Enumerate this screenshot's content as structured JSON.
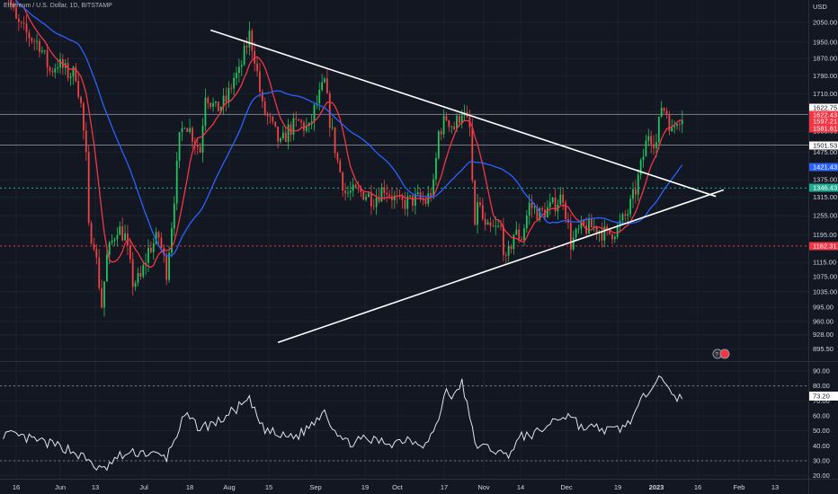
{
  "legend": {
    "symbol": "Ethereum / U.S. Dollar, 1D, BITSTAMP"
  },
  "chart_data": [
    {
      "type": "candlestick",
      "currency": "USD",
      "ylim": [
        880,
        2130
      ],
      "y_scale": "log",
      "y_ticks": [
        "2050.00",
        "1950.00",
        "1870.00",
        "1790.00",
        "1710.00",
        "1635.00",
        "1555.00",
        "1475.00",
        "1375.00",
        "1315.00",
        "1255.00",
        "1195.00",
        "1115.00",
        "1075.00",
        "1035.00",
        "995.00",
        "960.00",
        "928.00",
        "895.50"
      ],
      "x_ticks": [
        "16",
        "Jun",
        "13",
        "Jul",
        "18",
        "Aug",
        "15",
        "Sep",
        "19",
        "Oct",
        "17",
        "Nov",
        "14",
        "Dec",
        "19",
        "2023",
        "16",
        "Feb",
        "13"
      ],
      "last_close": 1622.75,
      "price_badges": [
        {
          "label": "1622.75",
          "kind": "last"
        },
        {
          "label": "1622.43",
          "kind": "ma-red"
        },
        {
          "label": "1597.21",
          "kind": "ma-red"
        },
        {
          "label": "1581.61",
          "kind": "ma-red"
        },
        {
          "label": "1501.53",
          "kind": "level"
        },
        {
          "label": "1421.43",
          "kind": "ma-blue"
        },
        {
          "label": "1346.43",
          "kind": "support-green"
        },
        {
          "label": "1162.31",
          "kind": "support-red"
        }
      ],
      "horizontal_levels": [
        {
          "price": 1622.75,
          "style": "solid",
          "color": "#787b86"
        },
        {
          "price": 1501.53,
          "style": "solid",
          "color": "#787b86"
        },
        {
          "price": 1346.43,
          "style": "dotted",
          "color": "#22ab94"
        },
        {
          "price": 1162.31,
          "style": "dotted",
          "color": "#f23645"
        }
      ],
      "trendlines": [
        {
          "from": [
            "2022-07-30",
            2010
          ],
          "to": [
            "2023-02-10",
            1318
          ]
        },
        {
          "from": [
            "2022-08-25",
            910
          ],
          "to": [
            "2023-02-13",
            1340
          ]
        }
      ],
      "moving_averages": [
        {
          "color": "#f23645"
        },
        {
          "color": "#2962ff"
        }
      ],
      "anchors": [
        {
          "date": "2022-05-11",
          "close": 2300
        },
        {
          "date": "2022-05-16",
          "close": 2050
        },
        {
          "date": "2022-05-20",
          "close": 1990
        },
        {
          "date": "2022-05-25",
          "close": 1940
        },
        {
          "date": "2022-05-29",
          "close": 1810
        },
        {
          "date": "2022-06-01",
          "close": 1850
        },
        {
          "date": "2022-06-05",
          "close": 1800
        },
        {
          "date": "2022-06-08",
          "close": 1800
        },
        {
          "date": "2022-06-10",
          "close": 1660
        },
        {
          "date": "2022-06-12",
          "close": 1450
        },
        {
          "date": "2022-06-13",
          "close": 1210
        },
        {
          "date": "2022-06-15",
          "close": 1180
        },
        {
          "date": "2022-06-18",
          "close": 1000
        },
        {
          "date": "2022-06-20",
          "close": 1130
        },
        {
          "date": "2022-06-24",
          "close": 1220
        },
        {
          "date": "2022-06-27",
          "close": 1190
        },
        {
          "date": "2022-06-30",
          "close": 1060
        },
        {
          "date": "2022-07-03",
          "close": 1070
        },
        {
          "date": "2022-07-06",
          "close": 1150
        },
        {
          "date": "2022-07-10",
          "close": 1190
        },
        {
          "date": "2022-07-13",
          "close": 1090
        },
        {
          "date": "2022-07-15",
          "close": 1230
        },
        {
          "date": "2022-07-18",
          "close": 1520
        },
        {
          "date": "2022-07-20",
          "close": 1600
        },
        {
          "date": "2022-07-22",
          "close": 1560
        },
        {
          "date": "2022-07-26",
          "close": 1480
        },
        {
          "date": "2022-07-28",
          "close": 1720
        },
        {
          "date": "2022-08-01",
          "close": 1640
        },
        {
          "date": "2022-08-05",
          "close": 1680
        },
        {
          "date": "2022-08-08",
          "close": 1780
        },
        {
          "date": "2022-08-10",
          "close": 1800
        },
        {
          "date": "2022-08-14",
          "close": 1985
        },
        {
          "date": "2022-08-16",
          "close": 1880
        },
        {
          "date": "2022-08-19",
          "close": 1650
        },
        {
          "date": "2022-08-22",
          "close": 1590
        },
        {
          "date": "2022-08-26",
          "close": 1500
        },
        {
          "date": "2022-08-29",
          "close": 1560
        },
        {
          "date": "2022-09-02",
          "close": 1590
        },
        {
          "date": "2022-09-06",
          "close": 1560
        },
        {
          "date": "2022-09-08",
          "close": 1640
        },
        {
          "date": "2022-09-12",
          "close": 1760
        },
        {
          "date": "2022-09-14",
          "close": 1600
        },
        {
          "date": "2022-09-17",
          "close": 1440
        },
        {
          "date": "2022-09-20",
          "close": 1330
        },
        {
          "date": "2022-09-23",
          "close": 1330
        },
        {
          "date": "2022-09-27",
          "close": 1330
        },
        {
          "date": "2022-10-01",
          "close": 1310
        },
        {
          "date": "2022-10-05",
          "close": 1350
        },
        {
          "date": "2022-10-08",
          "close": 1320
        },
        {
          "date": "2022-10-11",
          "close": 1290
        },
        {
          "date": "2022-10-14",
          "close": 1300
        },
        {
          "date": "2022-10-18",
          "close": 1310
        },
        {
          "date": "2022-10-21",
          "close": 1300
        },
        {
          "date": "2022-10-24",
          "close": 1350
        },
        {
          "date": "2022-10-26",
          "close": 1550
        },
        {
          "date": "2022-10-29",
          "close": 1610
        },
        {
          "date": "2022-11-01",
          "close": 1570
        },
        {
          "date": "2022-11-04",
          "close": 1640
        },
        {
          "date": "2022-11-07",
          "close": 1560
        },
        {
          "date": "2022-11-09",
          "close": 1200
        },
        {
          "date": "2022-11-10",
          "close": 1310
        },
        {
          "date": "2022-11-13",
          "close": 1210
        },
        {
          "date": "2022-11-16",
          "close": 1210
        },
        {
          "date": "2022-11-19",
          "close": 1215
        },
        {
          "date": "2022-11-21",
          "close": 1110
        },
        {
          "date": "2022-11-24",
          "close": 1200
        },
        {
          "date": "2022-11-27",
          "close": 1190
        },
        {
          "date": "2022-11-30",
          "close": 1290
        },
        {
          "date": "2022-12-04",
          "close": 1260
        },
        {
          "date": "2022-12-08",
          "close": 1280
        },
        {
          "date": "2022-12-13",
          "close": 1320
        },
        {
          "date": "2022-12-16",
          "close": 1170
        },
        {
          "date": "2022-12-20",
          "close": 1215
        },
        {
          "date": "2022-12-25",
          "close": 1220
        },
        {
          "date": "2022-12-30",
          "close": 1195
        },
        {
          "date": "2023-01-03",
          "close": 1215
        },
        {
          "date": "2023-01-07",
          "close": 1265
        },
        {
          "date": "2023-01-10",
          "close": 1340
        },
        {
          "date": "2023-01-12",
          "close": 1420
        },
        {
          "date": "2023-01-15",
          "close": 1550
        },
        {
          "date": "2023-01-18",
          "close": 1510
        },
        {
          "date": "2023-01-20",
          "close": 1660
        },
        {
          "date": "2023-01-22",
          "close": 1630
        },
        {
          "date": "2023-01-24",
          "close": 1550
        },
        {
          "date": "2023-01-26",
          "close": 1610
        },
        {
          "date": "2023-01-28",
          "close": 1622.75
        }
      ]
    },
    {
      "type": "line",
      "name": "RSI",
      "ylim": [
        18,
        96
      ],
      "y_ticks": [
        "90.00",
        "80.00",
        "70.00",
        "60.00",
        "50.00",
        "40.00",
        "30.00",
        "20.00"
      ],
      "reference_levels": [
        80,
        30
      ],
      "last_value_label": "73.20",
      "x": [
        "2022-05-11",
        "2022-05-25",
        "2022-06-05",
        "2022-06-13",
        "2022-06-18",
        "2022-06-25",
        "2022-07-03",
        "2022-07-13",
        "2022-07-20",
        "2022-07-26",
        "2022-08-02",
        "2022-08-10",
        "2022-08-14",
        "2022-08-19",
        "2022-08-26",
        "2022-09-02",
        "2022-09-08",
        "2022-09-12",
        "2022-09-14",
        "2022-09-20",
        "2022-09-28",
        "2022-10-08",
        "2022-10-14",
        "2022-10-21",
        "2022-10-25",
        "2022-10-29",
        "2022-11-01",
        "2022-11-04",
        "2022-11-09",
        "2022-11-12",
        "2022-11-16",
        "2022-11-21",
        "2022-11-27",
        "2022-12-04",
        "2022-12-10",
        "2022-12-16",
        "2022-12-20",
        "2022-12-25",
        "2023-01-01",
        "2023-01-06",
        "2023-01-10",
        "2023-01-15",
        "2023-01-18",
        "2023-01-20",
        "2023-01-22",
        "2023-01-25",
        "2023-01-28"
      ],
      "values": [
        48,
        43,
        38,
        30,
        23,
        33,
        36,
        32,
        60,
        52,
        56,
        66,
        70,
        52,
        46,
        47,
        56,
        65,
        56,
        42,
        44,
        42,
        45,
        41,
        52,
        78,
        72,
        83,
        42,
        39,
        38,
        33,
        46,
        49,
        58,
        61,
        52,
        52,
        50,
        53,
        62,
        78,
        86,
        88,
        78,
        71,
        73.2
      ]
    }
  ]
}
